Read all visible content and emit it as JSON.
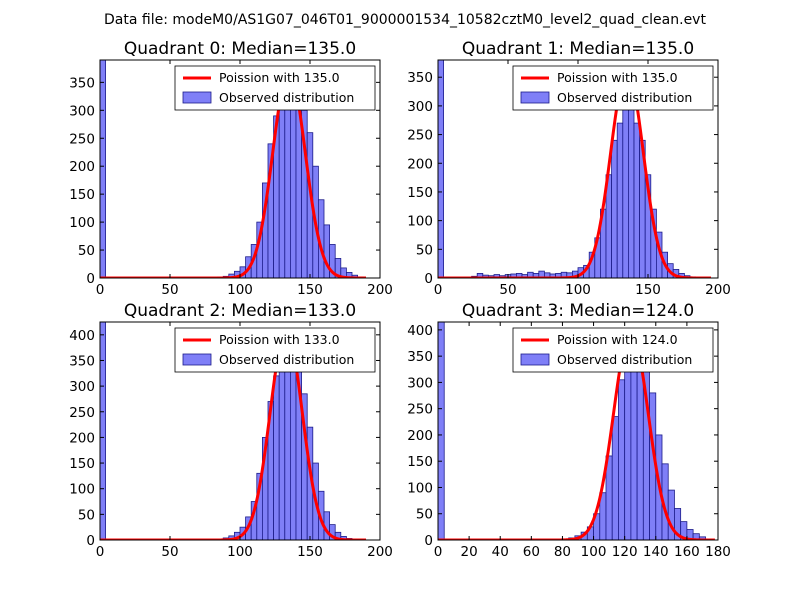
{
  "figure_title": "Data file: modeM0/AS1G07_046T01_9000001534_10582cztM0_level2_quad_clean.evt",
  "colors": {
    "bar_fill": "#7f7ff7",
    "bar_edge": "#1c1c8a",
    "curve": "#ff0000",
    "axis": "#000000"
  },
  "chart_data": [
    {
      "type": "bar",
      "title": "Quadrant 0: Median=135.0",
      "xlim": [
        0,
        200
      ],
      "ylim": [
        0,
        390
      ],
      "xticks": [
        0,
        50,
        100,
        150,
        200
      ],
      "yticks": [
        0,
        50,
        100,
        150,
        200,
        250,
        300,
        350
      ],
      "legend": {
        "position": "top-right",
        "entries": [
          "Poission with 135.0",
          "Observed distribution"
        ]
      },
      "poisson_mean": 135.0,
      "poisson_peak": 370,
      "curve_range": [
        0,
        190
      ],
      "bin_width": 4,
      "bins": [
        [
          0,
          390
        ],
        [
          84,
          2
        ],
        [
          88,
          3
        ],
        [
          92,
          7
        ],
        [
          96,
          12
        ],
        [
          100,
          20
        ],
        [
          104,
          38
        ],
        [
          108,
          60
        ],
        [
          112,
          100
        ],
        [
          116,
          170
        ],
        [
          120,
          240
        ],
        [
          124,
          290
        ],
        [
          128,
          330
        ],
        [
          132,
          345
        ],
        [
          136,
          360
        ],
        [
          140,
          330
        ],
        [
          144,
          300
        ],
        [
          148,
          260
        ],
        [
          152,
          200
        ],
        [
          156,
          140
        ],
        [
          160,
          95
        ],
        [
          164,
          60
        ],
        [
          168,
          35
        ],
        [
          172,
          18
        ],
        [
          176,
          10
        ],
        [
          180,
          5
        ],
        [
          184,
          2
        ]
      ]
    },
    {
      "type": "bar",
      "title": "Quadrant 1: Median=135.0",
      "xlim": [
        0,
        200
      ],
      "ylim": [
        0,
        380
      ],
      "xticks": [
        0,
        50,
        100,
        150,
        200
      ],
      "yticks": [
        0,
        50,
        100,
        150,
        200,
        250,
        300,
        350
      ],
      "legend": {
        "position": "top-right",
        "entries": [
          "Poission with 135.0",
          "Observed distribution"
        ]
      },
      "poisson_mean": 135.0,
      "poisson_peak": 362,
      "curve_range": [
        0,
        195
      ],
      "bin_width": 4,
      "bins": [
        [
          0,
          380
        ],
        [
          24,
          3
        ],
        [
          28,
          8
        ],
        [
          32,
          5
        ],
        [
          36,
          4
        ],
        [
          40,
          6
        ],
        [
          44,
          4
        ],
        [
          48,
          6
        ],
        [
          52,
          7
        ],
        [
          56,
          8
        ],
        [
          60,
          6
        ],
        [
          64,
          10
        ],
        [
          68,
          8
        ],
        [
          72,
          12
        ],
        [
          76,
          9
        ],
        [
          80,
          7
        ],
        [
          84,
          8
        ],
        [
          88,
          10
        ],
        [
          92,
          9
        ],
        [
          96,
          12
        ],
        [
          100,
          18
        ],
        [
          104,
          22
        ],
        [
          108,
          45
        ],
        [
          112,
          70
        ],
        [
          116,
          120
        ],
        [
          120,
          180
        ],
        [
          124,
          240
        ],
        [
          128,
          270
        ],
        [
          132,
          320
        ],
        [
          136,
          325
        ],
        [
          140,
          270
        ],
        [
          144,
          240
        ],
        [
          148,
          180
        ],
        [
          152,
          120
        ],
        [
          156,
          80
        ],
        [
          160,
          45
        ],
        [
          164,
          25
        ],
        [
          168,
          15
        ],
        [
          172,
          8
        ],
        [
          176,
          4
        ],
        [
          180,
          2
        ]
      ]
    },
    {
      "type": "bar",
      "title": "Quadrant 2: Median=133.0",
      "xlim": [
        0,
        200
      ],
      "ylim": [
        0,
        425
      ],
      "xticks": [
        0,
        50,
        100,
        150,
        200
      ],
      "yticks": [
        0,
        50,
        100,
        150,
        200,
        250,
        300,
        350,
        400
      ],
      "legend": {
        "position": "top-right",
        "entries": [
          "Poission with 133.0",
          "Observed distribution"
        ]
      },
      "poisson_mean": 133.0,
      "poisson_peak": 408,
      "curve_range": [
        0,
        190
      ],
      "bin_width": 4,
      "bins": [
        [
          0,
          425
        ],
        [
          84,
          2
        ],
        [
          88,
          4
        ],
        [
          92,
          8
        ],
        [
          96,
          15
        ],
        [
          100,
          25
        ],
        [
          104,
          45
        ],
        [
          108,
          75
        ],
        [
          112,
          130
        ],
        [
          116,
          200
        ],
        [
          120,
          270
        ],
        [
          124,
          320
        ],
        [
          128,
          380
        ],
        [
          132,
          400
        ],
        [
          136,
          380
        ],
        [
          140,
          330
        ],
        [
          144,
          285
        ],
        [
          148,
          220
        ],
        [
          152,
          150
        ],
        [
          156,
          95
        ],
        [
          160,
          55
        ],
        [
          164,
          30
        ],
        [
          168,
          15
        ],
        [
          172,
          7
        ],
        [
          176,
          3
        ]
      ]
    },
    {
      "type": "bar",
      "title": "Quadrant 3: Median=124.0",
      "xlim": [
        0,
        180
      ],
      "ylim": [
        0,
        415
      ],
      "xticks": [
        0,
        20,
        40,
        60,
        80,
        100,
        120,
        140,
        160,
        180
      ],
      "yticks": [
        0,
        50,
        100,
        150,
        200,
        250,
        300,
        350,
        400
      ],
      "legend": {
        "position": "top-right",
        "entries": [
          "Poission with 124.0",
          "Observed distribution"
        ]
      },
      "poisson_mean": 124.0,
      "poisson_peak": 398,
      "curve_range": [
        0,
        178
      ],
      "bin_width": 4,
      "bins": [
        [
          0,
          415
        ],
        [
          80,
          2
        ],
        [
          84,
          4
        ],
        [
          88,
          8
        ],
        [
          92,
          15
        ],
        [
          96,
          25
        ],
        [
          100,
          50
        ],
        [
          104,
          90
        ],
        [
          108,
          160
        ],
        [
          112,
          235
        ],
        [
          116,
          305
        ],
        [
          120,
          340
        ],
        [
          124,
          340
        ],
        [
          128,
          370
        ],
        [
          132,
          330
        ],
        [
          136,
          280
        ],
        [
          140,
          200
        ],
        [
          144,
          145
        ],
        [
          148,
          95
        ],
        [
          152,
          60
        ],
        [
          156,
          35
        ],
        [
          160,
          20
        ],
        [
          164,
          12
        ],
        [
          168,
          6
        ]
      ]
    }
  ]
}
